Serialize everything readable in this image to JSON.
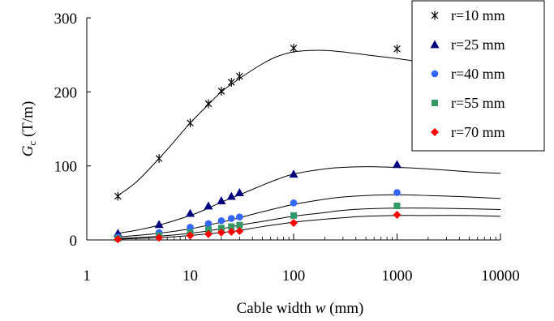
{
  "chart_data": {
    "type": "scatter",
    "x_scale": "log",
    "xlim": [
      1,
      10000
    ],
    "ylim": [
      0,
      300
    ],
    "x_ticks": [
      1,
      10,
      100,
      1000,
      10000
    ],
    "x_tick_labels": [
      "1",
      "10",
      "100",
      "1000",
      "10000"
    ],
    "y_ticks": [
      0,
      100,
      200,
      300
    ],
    "y_tick_labels": [
      "0",
      "100",
      "200",
      "300"
    ],
    "xlabel": {
      "prefix": "Cable width ",
      "var": "w",
      "suffix": "  (mm)"
    },
    "ylabel": {
      "main": "G",
      "sub": "c",
      "suffix": " (T/m)"
    },
    "grid": false,
    "legend_position": "top-right",
    "series": [
      {
        "name": "r=10 mm",
        "marker": "asterisk",
        "color": "#000000",
        "x": [
          2,
          5,
          10,
          15,
          20,
          25,
          30,
          100,
          1000
        ],
        "y": [
          59,
          110,
          158,
          184,
          201,
          213,
          221,
          259,
          258
        ],
        "fit": {
          "x": [
            2,
            3,
            5,
            7,
            10,
            15,
            20,
            30,
            50,
            70,
            100,
            150,
            200,
            300,
            500,
            1000,
            2000,
            5000,
            10000
          ],
          "y": [
            60,
            78,
            110,
            133,
            158,
            183,
            200,
            218,
            238,
            248,
            254,
            256,
            256,
            254,
            250,
            245,
            239,
            232,
            228
          ]
        }
      },
      {
        "name": "r=25 mm",
        "marker": "triangle",
        "color": "#00007f",
        "x": [
          2,
          5,
          10,
          15,
          20,
          25,
          30,
          100,
          1000
        ],
        "y": [
          9,
          21,
          36,
          46,
          53,
          59,
          64,
          89,
          102
        ],
        "fit": {
          "x": [
            2,
            3,
            5,
            10,
            15,
            20,
            30,
            50,
            70,
            100,
            200,
            300,
            500,
            1000,
            2000,
            5000,
            10000
          ],
          "y": [
            9,
            13,
            20,
            33,
            43,
            51,
            61,
            74,
            82,
            89,
            96,
            98,
            99,
            98,
            96,
            92,
            90
          ]
        }
      },
      {
        "name": "r=40 mm",
        "marker": "circle",
        "color": "#3366ff",
        "x": [
          2,
          5,
          10,
          15,
          20,
          25,
          30,
          100,
          1000
        ],
        "y": [
          4,
          10,
          17,
          22,
          26,
          29,
          31,
          50,
          64
        ],
        "fit": {
          "x": [
            2,
            3,
            5,
            10,
            20,
            30,
            50,
            100,
            200,
            300,
            500,
            1000,
            2000,
            5000,
            10000
          ],
          "y": [
            4,
            6,
            9,
            15,
            24,
            30,
            38,
            48,
            55,
            58,
            60,
            61,
            60,
            58,
            56
          ]
        }
      },
      {
        "name": "r=55 mm",
        "marker": "square",
        "color": "#339966",
        "x": [
          2,
          5,
          10,
          15,
          20,
          25,
          30,
          100,
          1000
        ],
        "y": [
          2,
          6,
          10,
          14,
          16,
          18,
          20,
          33,
          46
        ],
        "fit": {
          "x": [
            2,
            3,
            5,
            10,
            20,
            30,
            50,
            100,
            200,
            300,
            500,
            1000,
            2000,
            5000,
            10000
          ],
          "y": [
            2,
            3,
            5,
            9,
            15,
            20,
            25,
            32,
            37,
            40,
            42,
            43,
            43,
            42,
            41
          ]
        }
      },
      {
        "name": "r=70 mm",
        "marker": "diamond",
        "color": "#ff0000",
        "x": [
          2,
          5,
          10,
          15,
          20,
          25,
          30,
          100,
          1000
        ],
        "y": [
          1,
          3,
          6,
          8,
          10,
          11,
          12,
          23,
          34
        ],
        "fit": {
          "x": [
            2,
            3,
            5,
            10,
            20,
            30,
            50,
            100,
            200,
            300,
            500,
            1000,
            2000,
            5000,
            10000
          ],
          "y": [
            1,
            2,
            3,
            6,
            10,
            13,
            18,
            24,
            28,
            30,
            32,
            33,
            33,
            33,
            32
          ]
        }
      }
    ]
  }
}
